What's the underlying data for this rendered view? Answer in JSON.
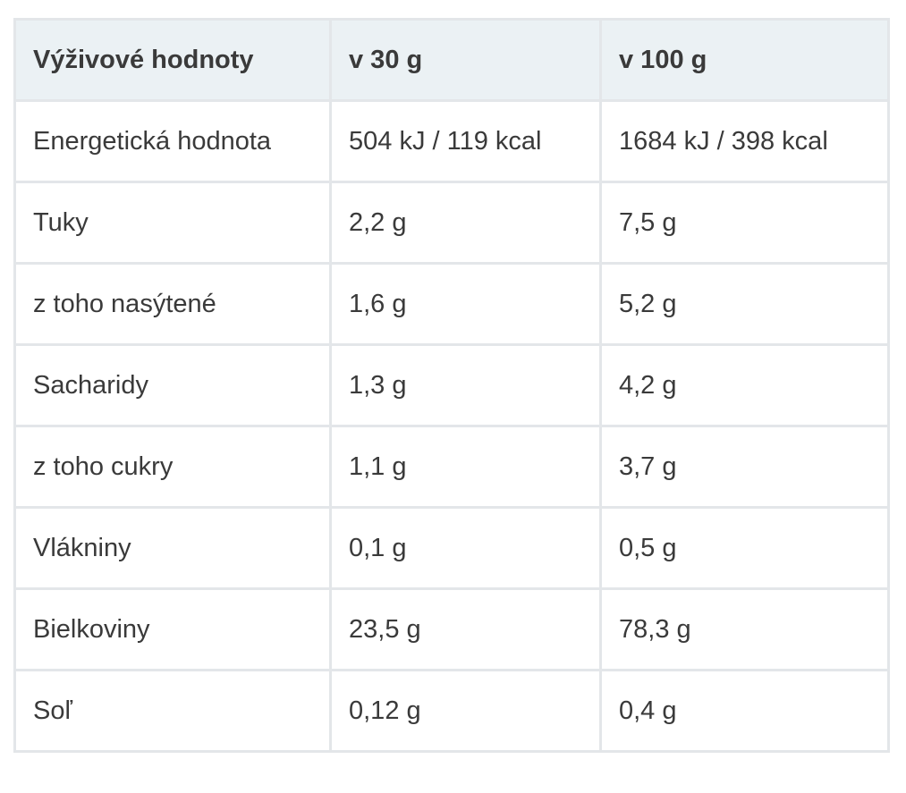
{
  "table": {
    "headers": [
      "Výživové hodnoty",
      "v 30 g",
      "v 100 g"
    ],
    "rows": [
      [
        "Energetická hodnota",
        "504 kJ / 119 kcal",
        "1684 kJ / 398 kcal"
      ],
      [
        "Tuky",
        "2,2 g",
        "7,5 g"
      ],
      [
        "z toho nasýtené",
        "1,6 g",
        "5,2 g"
      ],
      [
        "Sacharidy",
        "1,3 g",
        "4,2 g"
      ],
      [
        "z toho cukry",
        "1,1 g",
        "3,7 g"
      ],
      [
        "Vlákniny",
        "0,1 g",
        "0,5 g"
      ],
      [
        "Bielkoviny",
        "23,5 g",
        "78,3 g"
      ],
      [
        "Soľ",
        "0,12 g",
        "0,4 g"
      ]
    ]
  },
  "colors": {
    "header_background": "#ebf1f4",
    "border": "#e3e6e9",
    "text": "#3a3a3a"
  }
}
